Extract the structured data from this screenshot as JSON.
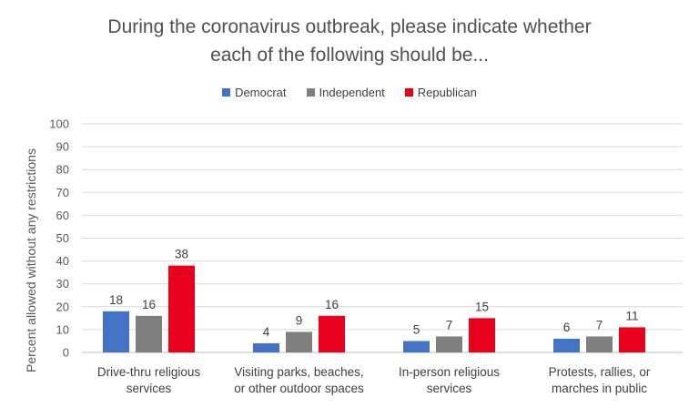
{
  "chart_data": {
    "type": "bar",
    "title": [
      "During the coronavirus outbreak, please indicate whether",
      "each of the following should be..."
    ],
    "ylabel": "Percent allowed without any restrictions",
    "xlabel": "",
    "ylim": [
      0,
      100
    ],
    "yticks": [
      0,
      10,
      20,
      30,
      40,
      50,
      60,
      70,
      80,
      90,
      100
    ],
    "grid": true,
    "legend_position": "top-center",
    "categories": [
      [
        "Drive-thru religious",
        "services"
      ],
      [
        "Visiting parks, beaches,",
        "or other outdoor spaces"
      ],
      [
        "In-person religious",
        "services"
      ],
      [
        "Protests, rallies, or",
        "marches in public"
      ]
    ],
    "series": [
      {
        "name": "Democrat",
        "color": "#4472C4",
        "values": [
          18,
          4,
          5,
          6
        ]
      },
      {
        "name": "Independent",
        "color": "#7F7F7F",
        "values": [
          16,
          9,
          7,
          7
        ]
      },
      {
        "name": "Republican",
        "color": "#E8001C",
        "values": [
          38,
          16,
          15,
          11
        ]
      }
    ]
  }
}
